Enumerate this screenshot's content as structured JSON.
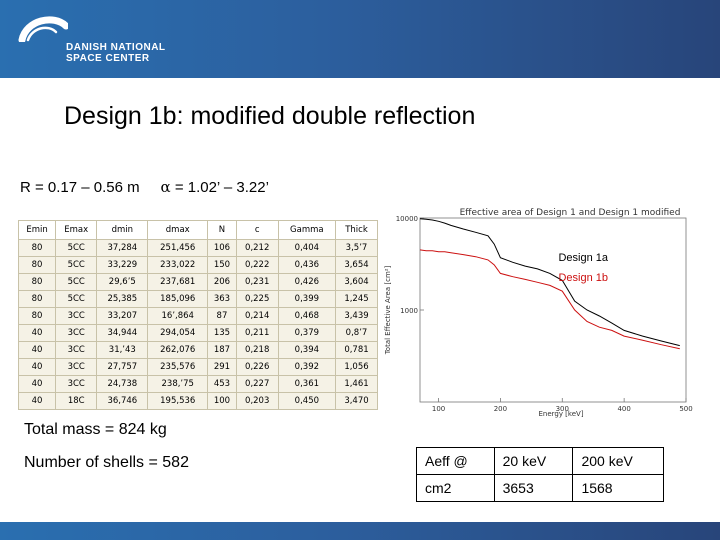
{
  "header": {
    "org_line1": "DANISH NATIONAL",
    "org_line2": "SPACE CENTER",
    "logo": "dnsc-arc-logo",
    "background_color": "#2c5f9e"
  },
  "slide": {
    "title": "Design 1b: modified double reflection",
    "radius_text": "R = 0.17 – 0.56 m",
    "alpha_symbol": "α",
    "alpha_text": "= 1.02’ – 3.22’",
    "total_mass": "Total mass = 824 kg",
    "shell_count": "Number of shells = 582"
  },
  "shell_table": {
    "headers": [
      "Emin",
      "Emax",
      "dmin",
      "dmax",
      "N",
      "c",
      "Gamma",
      "Thick"
    ],
    "rows": [
      [
        "80",
        "5CC",
        "37,284",
        "251,456",
        "106",
        "0,212",
        "0,404",
        "3,5’7"
      ],
      [
        "80",
        "5CC",
        "33,229",
        "233,022",
        "150",
        "0,222",
        "0,436",
        "3,654"
      ],
      [
        "80",
        "5CC",
        "29,6’5",
        "237,681",
        "206",
        "0,231",
        "0,426",
        "3,604"
      ],
      [
        "80",
        "5CC",
        "25,385",
        "185,096",
        "363",
        "0,225",
        "0,399",
        "1,245"
      ],
      [
        "80",
        "3CC",
        "33,207",
        "16’,864",
        "87",
        "0,214",
        "0,468",
        "3,439"
      ],
      [
        "40",
        "3CC",
        "34,944",
        "294,054",
        "135",
        "0,211",
        "0,379",
        "0,8’7"
      ],
      [
        "40",
        "3CC",
        "31,’43",
        "262,076",
        "187",
        "0,218",
        "0,394",
        "0,781"
      ],
      [
        "40",
        "3CC",
        "27,757",
        "235,576",
        "291",
        "0,226",
        "0,392",
        "1,056"
      ],
      [
        "40",
        "3CC",
        "24,738",
        "238,’75",
        "453",
        "0,227",
        "0,361",
        "1,461"
      ],
      [
        "40",
        "18C",
        "36,746",
        "195,536",
        "100",
        "0,203",
        "0,450",
        "3,470"
      ]
    ]
  },
  "chart_data": {
    "type": "line",
    "title": "Effective area of Design 1 and Design 1 modified",
    "xlabel": "Energy [keV]",
    "ylabel": "Total Effective Area [cm²]",
    "xlim": [
      70,
      500
    ],
    "ylim": [
      100,
      10000
    ],
    "y_scale": "log",
    "x_ticks": [
      100,
      200,
      300,
      400,
      500
    ],
    "x_tick_labels": [
      "100",
      "200",
      "300",
      "400",
      "500"
    ],
    "y_ticks": [
      1000,
      10000
    ],
    "y_tick_labels": [
      "1000",
      "10000"
    ],
    "legend_position": "right",
    "series": [
      {
        "name": "Design 1a",
        "color": "#000000",
        "x": [
          70,
          80,
          90,
          100,
          110,
          120,
          140,
          160,
          180,
          190,
          200,
          220,
          240,
          260,
          280,
          300,
          320,
          340,
          360,
          380,
          400,
          430,
          460,
          490
        ],
        "y": [
          9800,
          9700,
          9500,
          9200,
          8800,
          8300,
          7600,
          7000,
          6400,
          5200,
          3700,
          3300,
          3000,
          2800,
          2500,
          2100,
          1250,
          1000,
          860,
          720,
          600,
          520,
          460,
          410
        ]
      },
      {
        "name": "Design 1b",
        "color": "#cc1010",
        "x": [
          70,
          80,
          90,
          100,
          110,
          120,
          140,
          160,
          180,
          190,
          200,
          220,
          240,
          260,
          280,
          300,
          320,
          340,
          360,
          380,
          400,
          430,
          460,
          490
        ],
        "y": [
          4500,
          4400,
          4400,
          4300,
          4300,
          4200,
          4000,
          3800,
          3500,
          3100,
          2500,
          2300,
          2150,
          2000,
          1850,
          1600,
          1000,
          750,
          650,
          600,
          520,
          470,
          420,
          380
        ]
      }
    ]
  },
  "aeff_table": {
    "rows": [
      [
        "Aeff @",
        "20 keV",
        "200 keV"
      ],
      [
        "cm2",
        "3653",
        "1568"
      ]
    ]
  }
}
